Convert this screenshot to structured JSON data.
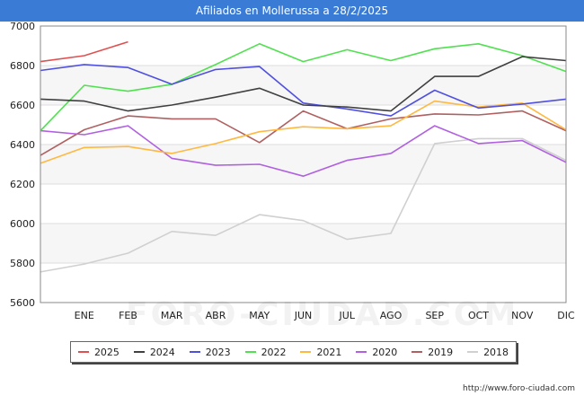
{
  "header": {
    "title": "Afiliados en Mollerussa a 28/2/2025"
  },
  "watermark": "FORO-CIUDAD.COM",
  "footer": {
    "url": "http://www.foro-ciudad.com"
  },
  "chart_data": {
    "type": "line",
    "title": "Afiliados en Mollerussa a 28/2/2025",
    "xlabel": "",
    "ylabel": "",
    "categories": [
      "",
      "ENE",
      "FEB",
      "MAR",
      "ABR",
      "MAY",
      "JUN",
      "JUL",
      "AGO",
      "SEP",
      "OCT",
      "NOV",
      "DIC"
    ],
    "ylim": [
      5600,
      7000
    ],
    "yticks": [
      5600,
      5800,
      6000,
      6200,
      6400,
      6600,
      6800,
      7000
    ],
    "grid": true,
    "legend_position": "bottom",
    "series": [
      {
        "name": "2025",
        "color": "#e05050",
        "values": [
          6820,
          6850,
          6920,
          null,
          null,
          null,
          null,
          null,
          null,
          null,
          null,
          null,
          null
        ]
      },
      {
        "name": "2024",
        "color": "#404040",
        "values": [
          6630,
          6620,
          6570,
          6600,
          6640,
          6685,
          6600,
          6590,
          6570,
          6745,
          6745,
          6845,
          6825
        ]
      },
      {
        "name": "2023",
        "color": "#5050e0",
        "values": [
          6775,
          6805,
          6790,
          6705,
          6780,
          6795,
          6610,
          6580,
          6545,
          6675,
          6585,
          6605,
          6630
        ]
      },
      {
        "name": "2022",
        "color": "#50e050",
        "values": [
          6470,
          6700,
          6670,
          6705,
          6805,
          6910,
          6820,
          6880,
          6825,
          6885,
          6910,
          6850,
          6770
        ]
      },
      {
        "name": "2021",
        "color": "#ffb840",
        "values": [
          6305,
          6385,
          6390,
          6355,
          6405,
          6465,
          6490,
          6480,
          6495,
          6620,
          6590,
          6610,
          6475
        ]
      },
      {
        "name": "2020",
        "color": "#b060e0",
        "values": [
          6470,
          6450,
          6495,
          6330,
          6295,
          6300,
          6240,
          6320,
          6355,
          6495,
          6405,
          6420,
          6310
        ]
      },
      {
        "name": "2019",
        "color": "#b06060",
        "values": [
          6345,
          6475,
          6545,
          6530,
          6530,
          6410,
          6570,
          6480,
          6530,
          6555,
          6550,
          6570,
          6470
        ]
      },
      {
        "name": "2018",
        "color": "#d0d0d0",
        "values": [
          5755,
          5795,
          5850,
          5960,
          5940,
          6045,
          6015,
          5920,
          5950,
          6405,
          6430,
          6430,
          6320
        ]
      }
    ]
  }
}
